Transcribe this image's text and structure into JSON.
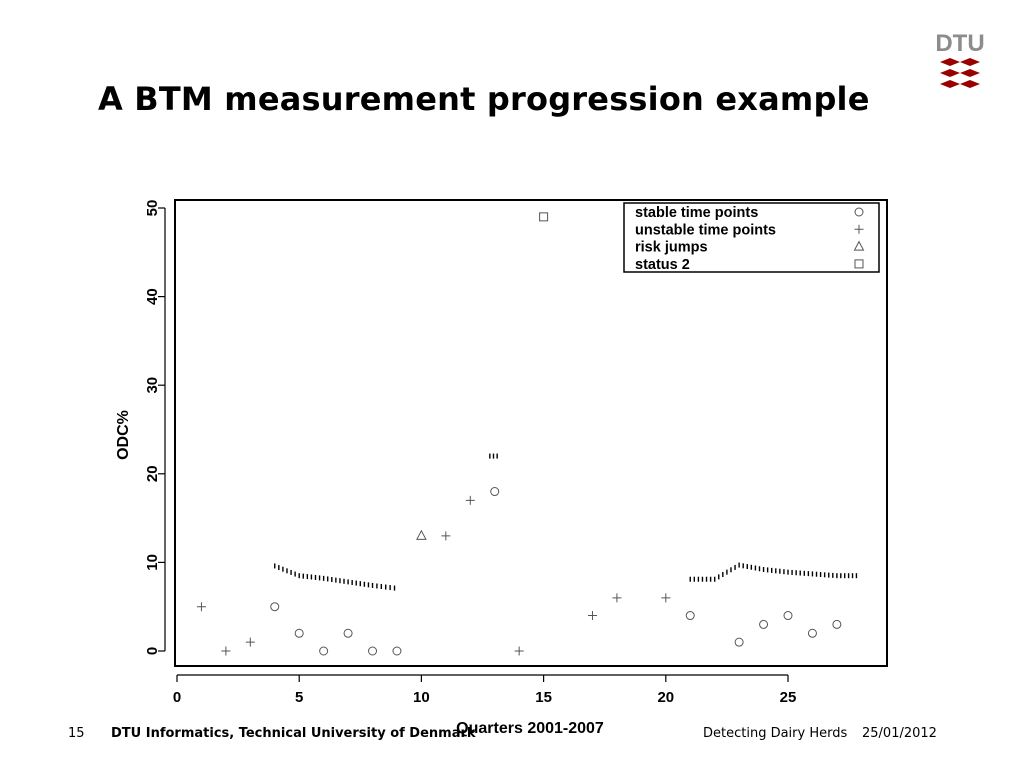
{
  "slide": {
    "title": "A BTM measurement progression example",
    "logo_text": "DTU",
    "brand_color": "#990000",
    "footer": {
      "slide_number": "15",
      "organization": "DTU Informatics, Technical University of Denmark",
      "topic": "Detecting Dairy Herds",
      "date": "25/01/2012"
    }
  },
  "chart_data": {
    "type": "scatter",
    "title": "",
    "xlabel": "Quarters 2001-2007",
    "ylabel": "ODC%",
    "xlim": [
      0,
      29
    ],
    "ylim": [
      -1.5,
      51
    ],
    "x_ticks": [
      0,
      5,
      10,
      15,
      20,
      25
    ],
    "y_ticks": [
      0,
      10,
      20,
      30,
      40,
      50
    ],
    "grid": false,
    "legend_position": "top-right",
    "series": [
      {
        "name": "stable time points",
        "marker": "circle",
        "points": [
          [
            4,
            5
          ],
          [
            5,
            2
          ],
          [
            6,
            0
          ],
          [
            7,
            2
          ],
          [
            8,
            0
          ],
          [
            9,
            0
          ],
          [
            13,
            18
          ],
          [
            21,
            4
          ],
          [
            23,
            1
          ],
          [
            24,
            3
          ],
          [
            25,
            4
          ],
          [
            26,
            2
          ],
          [
            27,
            3
          ]
        ]
      },
      {
        "name": "unstable time points",
        "marker": "plus",
        "points": [
          [
            1,
            5
          ],
          [
            2,
            0
          ],
          [
            3,
            1
          ],
          [
            11,
            13
          ],
          [
            12,
            17
          ],
          [
            14,
            0
          ],
          [
            17,
            4
          ],
          [
            18,
            6
          ],
          [
            20,
            6
          ]
        ]
      },
      {
        "name": "risk jumps",
        "marker": "triangle",
        "points": [
          [
            10,
            13
          ]
        ]
      },
      {
        "name": "status 2",
        "marker": "square",
        "points": [
          [
            15,
            49
          ]
        ]
      }
    ],
    "thresholds": [
      {
        "points": [
          [
            4,
            9.6
          ],
          [
            5,
            8.5
          ],
          [
            6,
            8.2
          ],
          [
            7,
            7.8
          ],
          [
            8,
            7.4
          ],
          [
            8.9,
            7.1
          ]
        ]
      },
      {
        "points": [
          [
            12.8,
            22
          ],
          [
            13.1,
            22
          ]
        ]
      },
      {
        "points": [
          [
            21,
            8.1
          ],
          [
            22,
            8.1
          ],
          [
            23,
            9.7
          ],
          [
            24,
            9.2
          ],
          [
            25,
            8.9
          ],
          [
            26,
            8.7
          ],
          [
            27,
            8.5
          ],
          [
            27.8,
            8.5
          ]
        ]
      }
    ]
  }
}
